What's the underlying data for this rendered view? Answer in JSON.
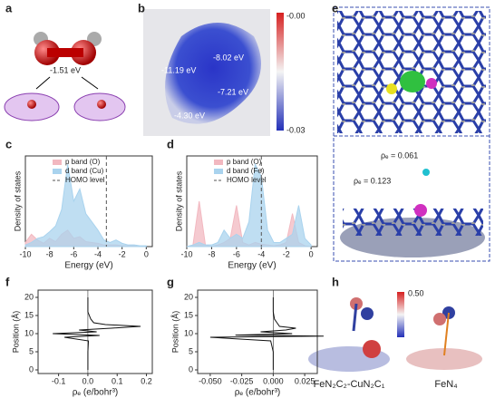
{
  "panels": [
    "a",
    "b",
    "e",
    "c",
    "d",
    "f",
    "g",
    "h"
  ],
  "panel_a": {
    "energy": "-1.51 eV"
  },
  "panel_b": {
    "colorbar": [
      "-0.00",
      "-0.03"
    ],
    "labels": [
      "-8.02 eV",
      "-11.19 eV",
      "-7.21 eV",
      "-4.30 eV"
    ]
  },
  "panel_e": {
    "labels": [
      "ρₑ = 0.061",
      "ρₑ = 0.123"
    ]
  },
  "panel_h": {
    "colorbar": "0.50",
    "labels": [
      "FeN₂C₂-CuN₂C₁",
      "FeN₄"
    ]
  },
  "chart_data": [
    {
      "type": "area",
      "ylabel": "Density of states",
      "xlabel": "Energy (eV)",
      "x": [
        -10,
        -9.5,
        -9,
        -8.5,
        -8,
        -7.5,
        -7,
        -6.5,
        -6,
        -5.5,
        -5,
        -4.5,
        -4,
        -3.5,
        -3,
        -2.5,
        -2,
        -1.5,
        -1,
        -0.5,
        0
      ],
      "series": [
        {
          "name": "p band (O)",
          "color": "#f2b8c0",
          "values": [
            0.05,
            0.15,
            0.08,
            0.04,
            0.1,
            0.06,
            0.15,
            0.2,
            0.1,
            0.12,
            0.06,
            0.05,
            0.04,
            0.02,
            0.02,
            0.02,
            0.01,
            0.01,
            0.01,
            0,
            0
          ]
        },
        {
          "name": "d band (Cu)",
          "color": "#a9d3ee",
          "values": [
            0.02,
            0.05,
            0.1,
            0.12,
            0.18,
            0.25,
            0.45,
            1.0,
            0.55,
            0.7,
            0.4,
            0.3,
            0.2,
            0.08,
            0.05,
            0.08,
            0.04,
            0.02,
            0.02,
            0.01,
            0.01
          ]
        }
      ],
      "homo_name": "HOMO level",
      "homo_level": -3.3,
      "xlim": [
        -10,
        0.5
      ],
      "ylim": [
        0,
        1.1
      ],
      "xticks": [
        -10,
        -8,
        -6,
        -4,
        -2,
        0
      ]
    },
    {
      "type": "area",
      "ylabel": "Density of states",
      "xlabel": "Energy (eV)",
      "x": [
        -10,
        -9.5,
        -9,
        -8.5,
        -8,
        -7.5,
        -7,
        -6.5,
        -6,
        -5.5,
        -5,
        -4.5,
        -4,
        -3.5,
        -3,
        -2.5,
        -2,
        -1.5,
        -1,
        -0.5,
        0
      ],
      "series": [
        {
          "name": "p band (O)",
          "color": "#f2b8c0",
          "values": [
            0,
            0.02,
            0.55,
            0.02,
            0,
            0.02,
            0.05,
            0.1,
            0.5,
            0.05,
            0.02,
            0.05,
            0.03,
            0.02,
            0.01,
            0.02,
            0.05,
            0.4,
            0.05,
            0.01,
            0
          ]
        },
        {
          "name": "d band (Fe)",
          "color": "#a9d3ee",
          "values": [
            0,
            0.02,
            0.05,
            0.02,
            0.02,
            0.05,
            0.2,
            0.1,
            0.15,
            0.1,
            0.3,
            1.0,
            0.85,
            0.2,
            0.05,
            0.05,
            0.1,
            0.15,
            0.5,
            0.1,
            0.02
          ]
        }
      ],
      "homo_name": "HOMO level",
      "homo_level": -4,
      "xlim": [
        -10,
        0.5
      ],
      "ylim": [
        0,
        1.1
      ],
      "xticks": [
        -10,
        -8,
        -6,
        -4,
        -2,
        0
      ]
    },
    {
      "type": "profile",
      "ylabel": "Position (Å)",
      "xlabel": "ρₑ (e/bohr³)",
      "y": [
        0,
        5,
        8,
        9,
        9.5,
        10,
        10.5,
        11,
        11.5,
        12,
        12.5,
        13,
        14,
        16,
        20
      ],
      "series": [
        {
          "color": "#111111",
          "values": [
            0,
            0,
            0.002,
            -0.08,
            0.04,
            -0.12,
            0.03,
            -0.03,
            0.08,
            0.18,
            0.06,
            0.02,
            0.01,
            0,
            0
          ]
        }
      ],
      "xlim": [
        -0.17,
        0.22
      ],
      "ylim": [
        -1,
        22
      ],
      "xticks": [
        -0.1,
        {
          "value": 0,
          "label": "0.0"
        },
        0.1,
        0.2
      ],
      "yticks": [
        0,
        5,
        10,
        15,
        20
      ]
    },
    {
      "type": "profile",
      "ylabel": "Position (Å)",
      "xlabel": "ρₑ (e/bohr³)",
      "y": [
        0,
        5,
        8,
        9,
        9.3,
        9.6,
        10,
        10.5,
        11,
        11.5,
        12,
        13,
        14,
        16,
        20
      ],
      "series": [
        {
          "color": "#111111",
          "values": [
            0,
            0,
            -0.002,
            -0.05,
            0.04,
            -0.03,
            0.015,
            -0.01,
            0.01,
            0.018,
            0.005,
            0.003,
            0.001,
            0,
            0
          ]
        }
      ],
      "xlim": [
        -0.06,
        0.035
      ],
      "ylim": [
        -1,
        22
      ],
      "xticks": [
        {
          "value": -0.05,
          "label": "-0.050"
        },
        -0.025,
        {
          "value": 0,
          "label": "0.000"
        },
        0.025
      ],
      "yticks": [
        0,
        5,
        10,
        15,
        20
      ]
    }
  ]
}
